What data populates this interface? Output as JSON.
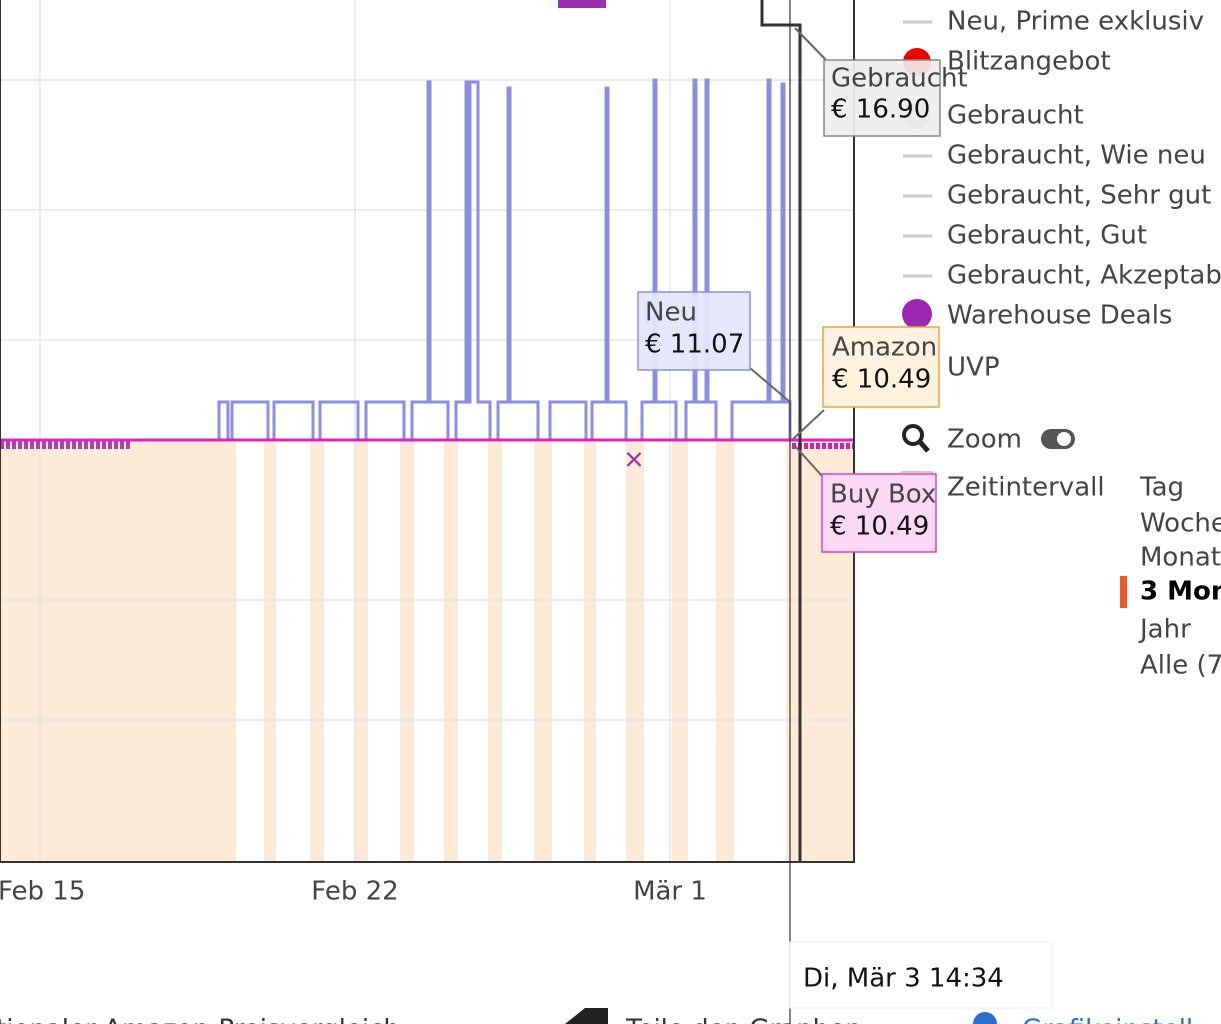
{
  "legend": [
    "Neu, Prime exklusiv",
    "Blitzangebot",
    "Gebraucht",
    "Gebraucht, Wie neu",
    "Gebraucht, Sehr gut",
    "Gebraucht, Gut",
    "Gebraucht, Akzeptab",
    "Warehouse Deals",
    "UVP"
  ],
  "tooltips": {
    "used": {
      "label": "Gebraucht",
      "price": "€ 16.90"
    },
    "new": {
      "label": "Neu",
      "price": "€ 11.07"
    },
    "amazon": {
      "label": "Amazon",
      "price": "€ 10.49"
    },
    "buybox": {
      "label": "Buy Box",
      "price": "€ 10.49"
    }
  },
  "x_axis_labels": [
    "Feb 15",
    "Feb 22",
    "Mär 1"
  ],
  "zoom": "Zoom",
  "time_interval": {
    "label": "Zeitintervall",
    "options": [
      "Tag",
      "Woche",
      "Monat",
      "3 Mon",
      "Jahr",
      "Alle (7"
    ]
  },
  "crosshair_date": "Di, Mär 3 14:34",
  "footer_links": [
    "tionaler Amazon-Preisvergleich",
    "Teile den Graphen",
    "Grafikeinstell"
  ]
}
